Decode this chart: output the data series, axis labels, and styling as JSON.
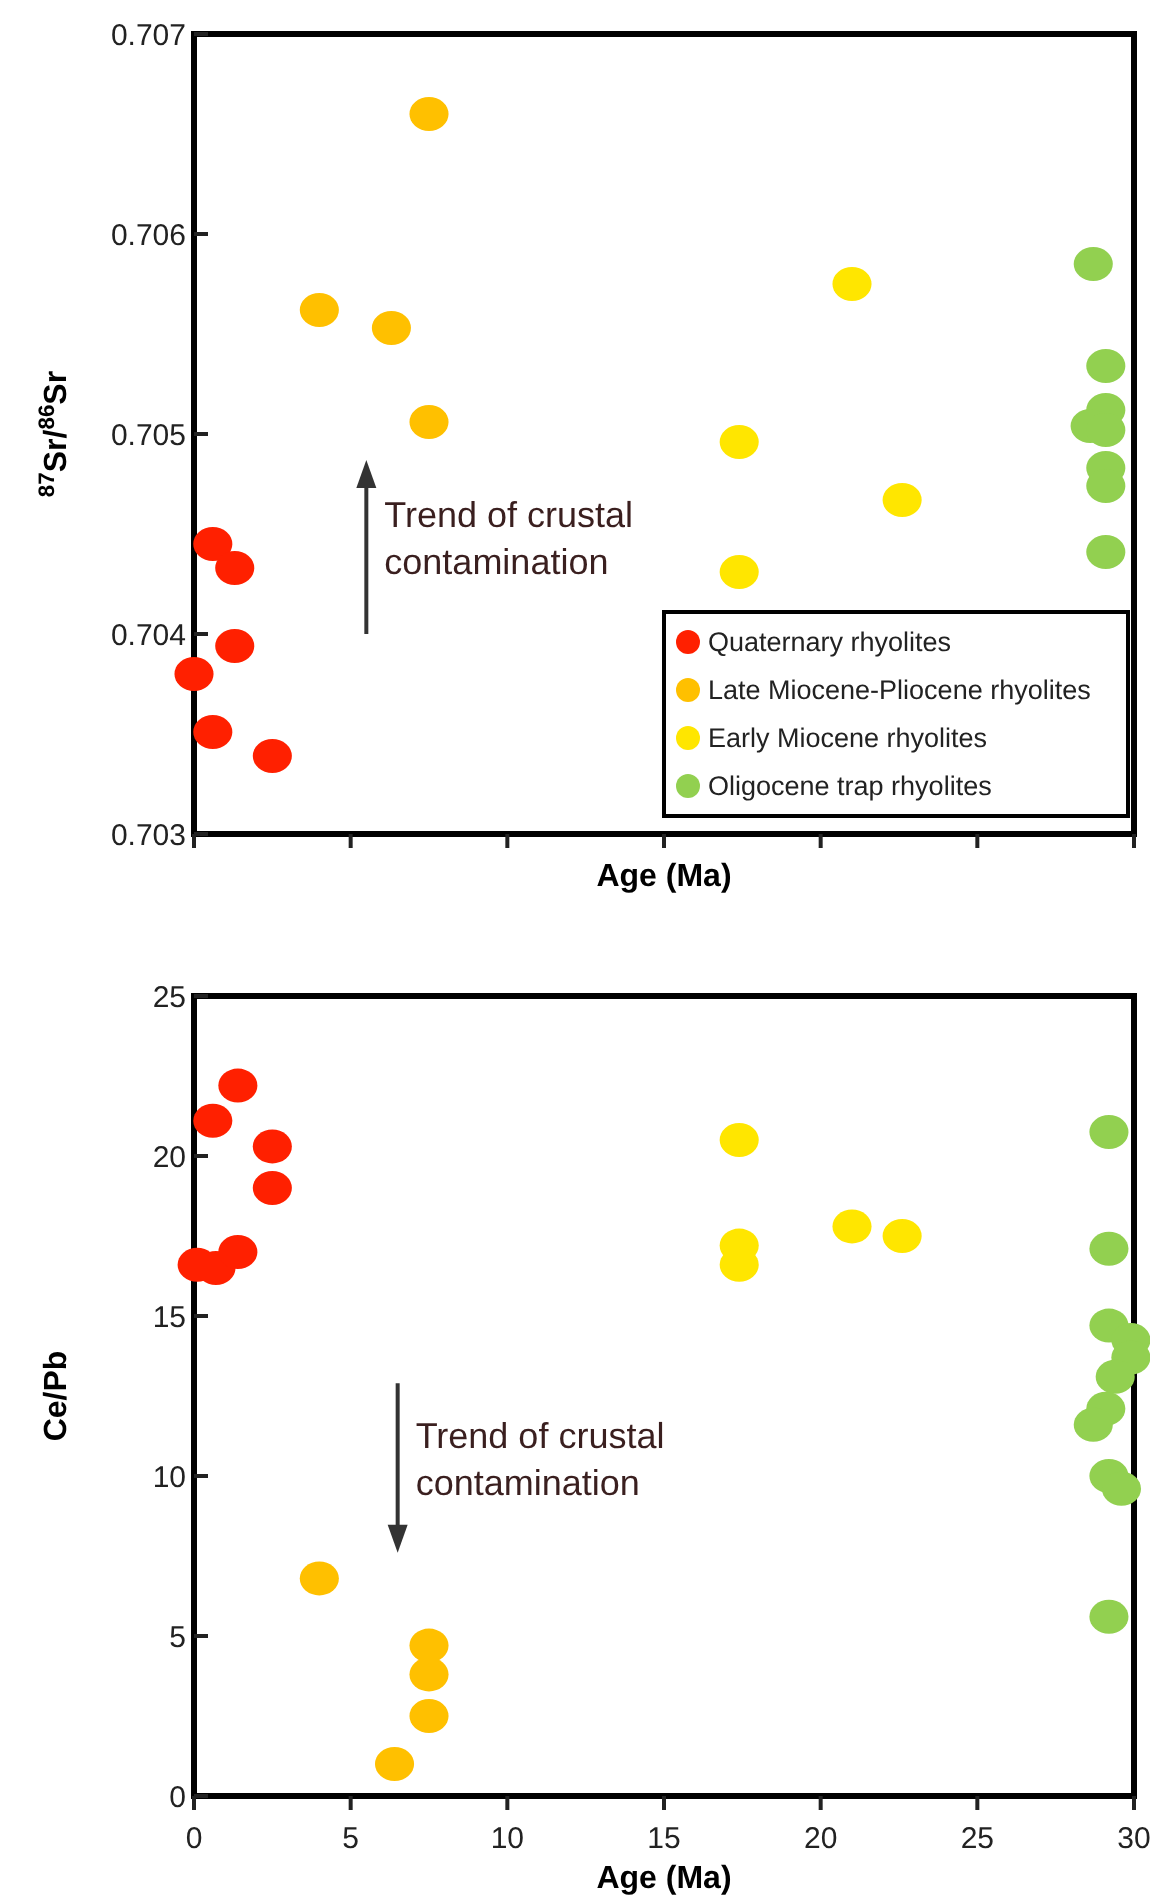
{
  "chart_data": [
    {
      "type": "scatter",
      "xlabel": "Age (Ma)",
      "ylabel": "$^{87}$Sr/$^{86}$Sr",
      "xlim": [
        0,
        30
      ],
      "xticks": [
        0,
        5,
        10,
        15,
        20,
        25,
        30
      ],
      "ylim": [
        0.703,
        0.707
      ],
      "yticks": [
        0.703,
        0.704,
        0.705,
        0.706,
        0.707
      ],
      "marker": "circle",
      "legend": "bottom right",
      "grid": false,
      "tick_labels": "y",
      "annotations": [
        "Trend of crustal contamination"
      ],
      "series": [
        {
          "name": "Quaternary rhyolites",
          "color": "#ff2000",
          "x": [
            0,
            0.6,
            1.3,
            1.3,
            0.6,
            2.5
          ],
          "values": [
            0.7038,
            0.70445,
            0.70433,
            0.70394,
            0.70351,
            0.70339
          ]
        },
        {
          "name": "Late Miocene-Pliocene rhyolites",
          "color": "#ffc000",
          "x": [
            7.5,
            4,
            6.3,
            7.5
          ],
          "values": [
            0.7066,
            0.70562,
            0.70553,
            0.70506
          ]
        },
        {
          "name": "Early Miocene rhyolites",
          "color": "#ffe600",
          "x": [
            17.4,
            17.4,
            21,
            22.6
          ],
          "values": [
            0.70496,
            0.70431,
            0.70575,
            0.70467
          ]
        },
        {
          "name": "Oligocene trap rhyolites",
          "color": "#92d050",
          "x": [
            28.7,
            29.1,
            29.1,
            28.6,
            29.1,
            29.1,
            29.1,
            29.1
          ],
          "values": [
            0.70585,
            0.70534,
            0.70512,
            0.70504,
            0.70502,
            0.70483,
            0.70474,
            0.70441
          ]
        }
      ]
    },
    {
      "type": "scatter",
      "xlabel": "Age (Ma)",
      "ylabel": "Ce/Pb",
      "xlim": [
        0,
        30
      ],
      "xticks": [
        0,
        5,
        10,
        15,
        20,
        25,
        30
      ],
      "ylim": [
        0,
        25
      ],
      "yticks": [
        0,
        5,
        10,
        15,
        20,
        25
      ],
      "marker": "circle",
      "legend": false,
      "grid": false,
      "annotations": [
        "Trend of crustal contamination"
      ],
      "series": [
        {
          "color": "#ff2000",
          "x": [
            0.1,
            0.7,
            0.6,
            1.4,
            1.4,
            2.5,
            2.5
          ],
          "values": [
            16.6,
            16.5,
            21.1,
            22.2,
            17.0,
            20.3,
            19.0
          ]
        },
        {
          "color": "#ffc000",
          "x": [
            4,
            7.5,
            7.5,
            7.5,
            6.4
          ],
          "values": [
            6.8,
            4.7,
            3.8,
            2.5,
            1.0
          ]
        },
        {
          "color": "#ffe600",
          "x": [
            17.4,
            17.4,
            17.4,
            21,
            22.6
          ],
          "values": [
            20.5,
            17.2,
            16.6,
            17.8,
            17.5
          ]
        },
        {
          "color": "#92d050",
          "x": [
            29.2,
            29.2,
            29.2,
            29.9,
            29.9,
            29.4,
            29.1,
            28.7,
            29.2,
            29.6,
            29.2
          ],
          "values": [
            20.75,
            17.1,
            14.7,
            14.25,
            13.7,
            13.1,
            12.1,
            11.6,
            10.0,
            9.6,
            5.6
          ]
        }
      ]
    }
  ]
}
